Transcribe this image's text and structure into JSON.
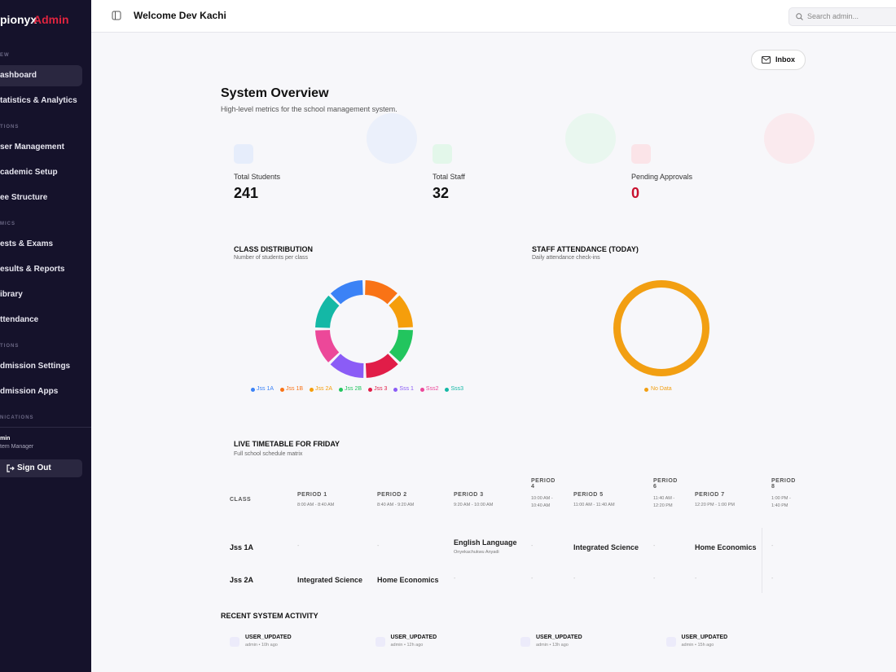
{
  "sidebar": {
    "brand": "pionyx",
    "brand_accent": "Admin",
    "nav": [
      {
        "kind": "section",
        "label": "EW"
      },
      {
        "kind": "item",
        "label": "ashboard",
        "active": true
      },
      {
        "kind": "item",
        "label": "tatistics & Analytics"
      },
      {
        "kind": "section",
        "label": "TIONS"
      },
      {
        "kind": "item",
        "label": "ser Management"
      },
      {
        "kind": "item",
        "label": "cademic Setup"
      },
      {
        "kind": "item",
        "label": "ee Structure"
      },
      {
        "kind": "section",
        "label": "MICS"
      },
      {
        "kind": "item",
        "label": "ests & Exams"
      },
      {
        "kind": "item",
        "label": "esults & Reports"
      },
      {
        "kind": "item",
        "label": "ibrary"
      },
      {
        "kind": "item",
        "label": "ttendance"
      },
      {
        "kind": "section",
        "label": "TIONS"
      },
      {
        "kind": "item",
        "label": "dmission Settings"
      },
      {
        "kind": "item",
        "label": "dmission Apps"
      },
      {
        "kind": "section",
        "label": "NICATIONS"
      }
    ],
    "user": {
      "name": "min",
      "role": "tem Manager"
    },
    "sign_out": "Sign Out"
  },
  "header": {
    "title": "Welcome Dev Kachi",
    "search_placeholder": "Search admin..."
  },
  "inbox": "Inbox",
  "overview": {
    "title": "System Overview",
    "subtitle": "High-level metrics for the school management system."
  },
  "stats": [
    {
      "label": "Total Students",
      "value": 241,
      "color": "#111111",
      "tint": "#e6edfb"
    },
    {
      "label": "Total Staff",
      "value": 32,
      "color": "#111111",
      "tint": "#e3f7ea"
    },
    {
      "label": "Pending Approvals",
      "value": 0,
      "color": "#c8102e",
      "tint": "#fbe4e8"
    }
  ],
  "class_distribution": {
    "title": "CLASS DISTRIBUTION",
    "subtitle": "Number of students per class",
    "categories": [
      "Jss 1A",
      "Jss 1B",
      "Jss 2A",
      "Jss 2B",
      "Jss 3",
      "Sss 1",
      "Sss2",
      "Sss3"
    ],
    "values": [
      30,
      30,
      30,
      30,
      30,
      31,
      30,
      30
    ],
    "colors": [
      "#3b82f6",
      "#f97316",
      "#f59e0b",
      "#22c55e",
      "#e11d48",
      "#8b5cf6",
      "#ec4899",
      "#14b8a6"
    ]
  },
  "staff_attendance": {
    "title": "STAFF ATTENDANCE (TODAY)",
    "subtitle": "Daily attendance check-ins",
    "legend": "No Data",
    "color": "#f29f12"
  },
  "timetable": {
    "title": "LIVE TIMETABLE FOR FRIDAY",
    "subtitle": "Full school schedule matrix",
    "class_header": "CLASS",
    "periods": [
      {
        "name": "PERIOD 1",
        "time": "8:00 AM - 8:40 AM"
      },
      {
        "name": "PERIOD 2",
        "time": "8:40 AM - 9:20 AM"
      },
      {
        "name": "PERIOD 3",
        "time": "9:20 AM - 10:00 AM"
      },
      {
        "name": "PERIOD 4",
        "time": "10:00 AM - 10:40 AM"
      },
      {
        "name": "PERIOD 5",
        "time": "11:00 AM - 11:40 AM"
      },
      {
        "name": "PERIOD 6",
        "time": "11:40 AM - 12:20 PM"
      },
      {
        "name": "PERIOD 7",
        "time": "12:20 PM - 1:00 PM"
      },
      {
        "name": "PERIOD 8",
        "time": "1:00 PM - 1:40 PM"
      }
    ],
    "rows": [
      {
        "class": "Jss 1A",
        "cells": [
          {
            "subject": "-"
          },
          {
            "subject": "-"
          },
          {
            "subject": "English Language",
            "teacher": "Onyekachukwu Anyadi"
          },
          {
            "subject": "-"
          },
          {
            "subject": "Integrated Science"
          },
          {
            "subject": "-"
          },
          {
            "subject": "Home Economics"
          },
          {
            "subject": "-"
          }
        ]
      },
      {
        "class": "Jss 2A",
        "cells": [
          {
            "subject": "Integrated Science"
          },
          {
            "subject": "Home Economics"
          },
          {
            "subject": "-"
          },
          {
            "subject": "-"
          },
          {
            "subject": "-"
          },
          {
            "subject": "-"
          },
          {
            "subject": "-"
          },
          {
            "subject": "-"
          }
        ]
      }
    ]
  },
  "activity": {
    "title": "RECENT SYSTEM ACTIVITY",
    "items": [
      {
        "action": "USER_UPDATED",
        "meta": "admin • 10h ago"
      },
      {
        "action": "USER_UPDATED",
        "meta": "admin • 12h ago"
      },
      {
        "action": "USER_UPDATED",
        "meta": "admin • 13h ago"
      },
      {
        "action": "USER_UPDATED",
        "meta": "admin • 15h ago"
      }
    ]
  }
}
